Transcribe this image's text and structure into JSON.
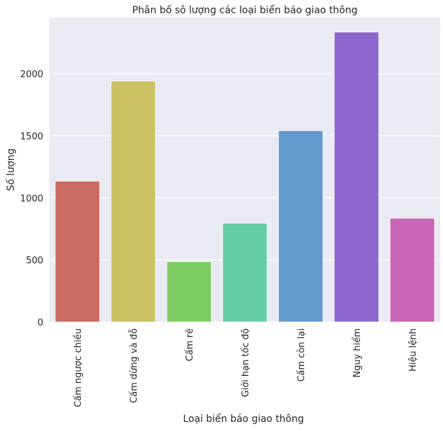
{
  "chart_data": {
    "type": "bar",
    "title": "Phân bố sô lượng các loại biển báo giao thông",
    "xlabel": "Loại biển báo giao thông",
    "ylabel": "Số lượng",
    "categories": [
      "Cấm ngược chiều",
      "Cấm dừng và đỗ",
      "Cấm rẽ",
      "Giới hạn tốc độ",
      "Cấm còn lại",
      "Nguy hiểm",
      "Hiệu lệnh"
    ],
    "values": [
      1135,
      1942,
      487,
      797,
      1542,
      2336,
      837
    ],
    "colors": [
      "#c96a63",
      "#ccc265",
      "#7fcc62",
      "#66cca3",
      "#659bcc",
      "#8c66cc",
      "#c966b8"
    ],
    "ylim": [
      0,
      2453
    ],
    "yticks": [
      0,
      500,
      1000,
      1500,
      2000
    ],
    "grid": true,
    "background": "#eaeaf2"
  }
}
